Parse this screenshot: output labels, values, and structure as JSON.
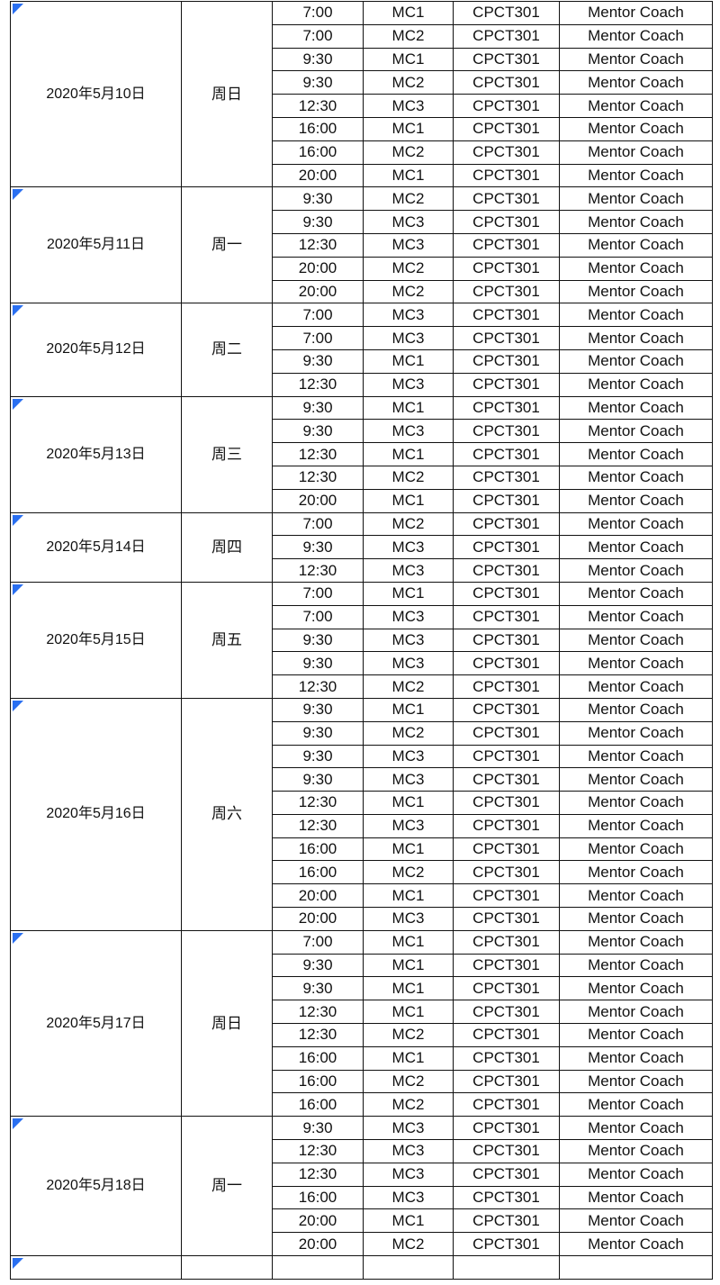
{
  "accent_color": "#2a6ff0",
  "groups": [
    {
      "date": "2020年5月10日",
      "weekday": "周日",
      "rows": [
        [
          "7:00",
          "MC1"
        ],
        [
          "7:00",
          "MC2"
        ],
        [
          "9:30",
          "MC1"
        ],
        [
          "9:30",
          "MC2"
        ],
        [
          "12:30",
          "MC3"
        ],
        [
          "16:00",
          "MC1"
        ],
        [
          "16:00",
          "MC2"
        ],
        [
          "20:00",
          "MC1"
        ]
      ]
    },
    {
      "date": "2020年5月11日",
      "weekday": "周一",
      "rows": [
        [
          "9:30",
          "MC2"
        ],
        [
          "9:30",
          "MC3"
        ],
        [
          "12:30",
          "MC3"
        ],
        [
          "20:00",
          "MC2"
        ],
        [
          "20:00",
          "MC2"
        ]
      ]
    },
    {
      "date": "2020年5月12日",
      "weekday": "周二",
      "rows": [
        [
          "7:00",
          "MC3"
        ],
        [
          "7:00",
          "MC3"
        ],
        [
          "9:30",
          "MC1"
        ],
        [
          "12:30",
          "MC3"
        ]
      ]
    },
    {
      "date": "2020年5月13日",
      "weekday": "周三",
      "rows": [
        [
          "9:30",
          "MC1"
        ],
        [
          "9:30",
          "MC3"
        ],
        [
          "12:30",
          "MC1"
        ],
        [
          "12:30",
          "MC2"
        ],
        [
          "20:00",
          "MC1"
        ]
      ]
    },
    {
      "date": "2020年5月14日",
      "weekday": "周四",
      "rows": [
        [
          "7:00",
          "MC2"
        ],
        [
          "9:30",
          "MC3"
        ],
        [
          "12:30",
          "MC3"
        ]
      ]
    },
    {
      "date": "2020年5月15日",
      "weekday": "周五",
      "rows": [
        [
          "7:00",
          "MC1"
        ],
        [
          "7:00",
          "MC3"
        ],
        [
          "9:30",
          "MC3"
        ],
        [
          "9:30",
          "MC3"
        ],
        [
          "12:30",
          "MC2"
        ]
      ]
    },
    {
      "date": "2020年5月16日",
      "weekday": "周六",
      "rows": [
        [
          "9:30",
          "MC1"
        ],
        [
          "9:30",
          "MC2"
        ],
        [
          "9:30",
          "MC3"
        ],
        [
          "9:30",
          "MC3"
        ],
        [
          "12:30",
          "MC1"
        ],
        [
          "12:30",
          "MC3"
        ],
        [
          "16:00",
          "MC1"
        ],
        [
          "16:00",
          "MC2"
        ],
        [
          "20:00",
          "MC1"
        ],
        [
          "20:00",
          "MC3"
        ]
      ]
    },
    {
      "date": "2020年5月17日",
      "weekday": "周日",
      "rows": [
        [
          "7:00",
          "MC1"
        ],
        [
          "9:30",
          "MC1"
        ],
        [
          "9:30",
          "MC1"
        ],
        [
          "12:30",
          "MC1"
        ],
        [
          "12:30",
          "MC2"
        ],
        [
          "16:00",
          "MC1"
        ],
        [
          "16:00",
          "MC2"
        ],
        [
          "16:00",
          "MC2"
        ]
      ]
    },
    {
      "date": "2020年5月18日",
      "weekday": "周一",
      "rows": [
        [
          "9:30",
          "MC3"
        ],
        [
          "12:30",
          "MC3"
        ],
        [
          "12:30",
          "MC3"
        ],
        [
          "16:00",
          "MC3"
        ],
        [
          "20:00",
          "MC1"
        ],
        [
          "20:00",
          "MC2"
        ]
      ]
    }
  ],
  "course_code": "CPCT301",
  "course_name": "Mentor Coach"
}
